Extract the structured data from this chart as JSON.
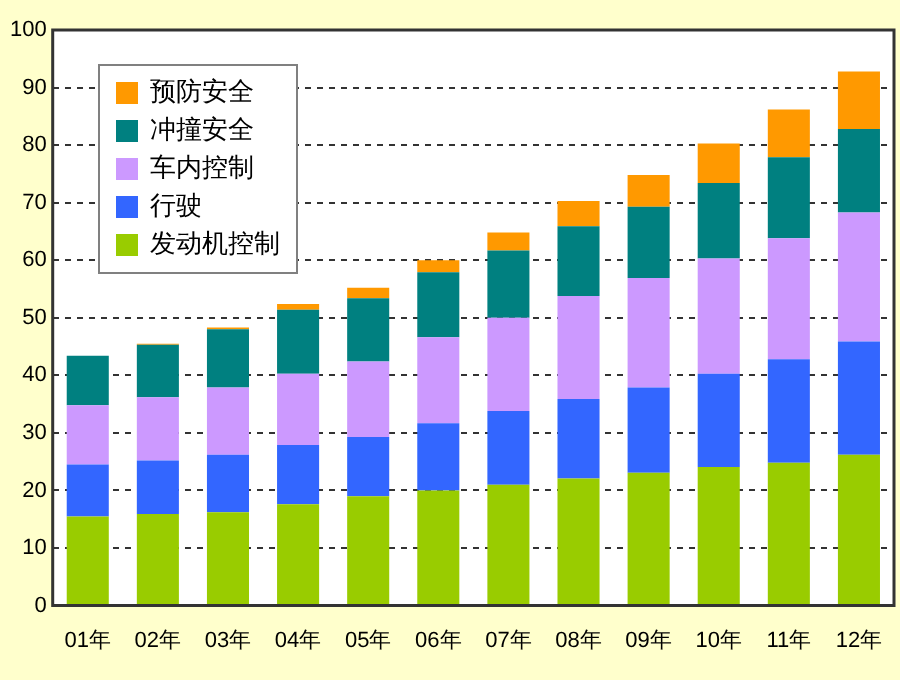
{
  "chart_data": {
    "type": "bar",
    "stacked": true,
    "categories": [
      "01年",
      "02年",
      "03年",
      "04年",
      "05年",
      "06年",
      "07年",
      "08年",
      "09年",
      "10年",
      "11年",
      "12年"
    ],
    "series": [
      {
        "name": "发动机控制",
        "color": "#99cc00",
        "values": [
          15.5,
          15.9,
          16.2,
          17.6,
          19.0,
          20.0,
          21.0,
          22.1,
          23.1,
          24.1,
          24.8,
          26.2
        ]
      },
      {
        "name": "行驶",
        "color": "#3366ff",
        "values": [
          9.0,
          9.3,
          10.0,
          10.3,
          10.3,
          11.7,
          12.8,
          13.8,
          14.8,
          16.2,
          18.0,
          19.7
        ]
      },
      {
        "name": "车内控制",
        "color": "#cc99ff",
        "values": [
          10.3,
          11.0,
          11.7,
          12.4,
          13.1,
          14.9,
          16.2,
          17.9,
          19.0,
          20.0,
          21.0,
          22.4
        ]
      },
      {
        "name": "冲撞安全",
        "color": "#008080",
        "values": [
          8.6,
          9.1,
          10.1,
          11.1,
          11.0,
          11.3,
          11.7,
          12.1,
          12.4,
          13.1,
          14.1,
          14.5
        ]
      },
      {
        "name": "预防安全",
        "color": "#ff9900",
        "values": [
          0,
          0.2,
          0.3,
          1.0,
          1.8,
          2.1,
          3.1,
          4.4,
          5.5,
          6.9,
          8.3,
          10.0
        ]
      }
    ],
    "ylim": [
      0,
      100
    ],
    "yticks": [
      0,
      10,
      20,
      30,
      40,
      50,
      60,
      70,
      80,
      90,
      100
    ],
    "grid": "y",
    "legend": "top left"
  }
}
